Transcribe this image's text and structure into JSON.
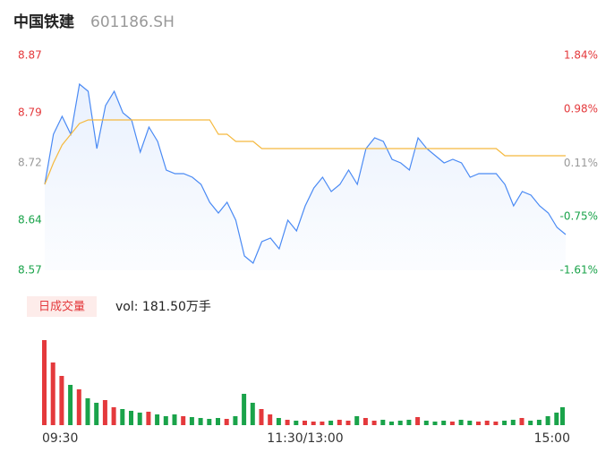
{
  "header": {
    "title": "中国铁建",
    "code": "601186.SH"
  },
  "chart_data": [
    {
      "type": "line",
      "x": [
        0,
        4,
        8,
        12,
        16,
        20,
        24,
        28,
        32,
        36,
        40,
        44,
        48,
        52,
        56,
        60,
        64,
        68,
        72,
        76,
        80,
        84,
        88,
        92,
        96,
        100,
        104,
        108,
        112,
        116,
        120,
        124,
        128,
        132,
        136,
        140,
        144,
        148,
        152,
        156,
        160,
        164,
        168,
        172,
        176,
        180,
        184,
        188,
        192,
        196,
        200,
        204,
        208,
        212,
        216,
        220,
        224,
        228,
        232,
        236,
        240
      ],
      "series": [
        {
          "name": "price",
          "color": "#4a8af4",
          "values": [
            8.69,
            8.76,
            8.785,
            8.76,
            8.83,
            8.82,
            8.74,
            8.8,
            8.82,
            8.79,
            8.78,
            8.735,
            8.77,
            8.75,
            8.71,
            8.705,
            8.705,
            8.7,
            8.69,
            8.665,
            8.65,
            8.665,
            8.64,
            8.59,
            8.58,
            8.61,
            8.615,
            8.6,
            8.64,
            8.625,
            8.66,
            8.685,
            8.7,
            8.68,
            8.69,
            8.71,
            8.69,
            8.74,
            8.755,
            8.75,
            8.725,
            8.72,
            8.71,
            8.755,
            8.74,
            8.73,
            8.72,
            8.725,
            8.72,
            8.7,
            8.705,
            8.705,
            8.705,
            8.69,
            8.66,
            8.68,
            8.675,
            8.66,
            8.65,
            8.63,
            8.62
          ]
        },
        {
          "name": "average",
          "color": "#f5b93e",
          "values": [
            8.69,
            8.72,
            8.745,
            8.76,
            8.775,
            8.78,
            8.78,
            8.78,
            8.78,
            8.78,
            8.78,
            8.78,
            8.78,
            8.78,
            8.78,
            8.78,
            8.78,
            8.78,
            8.78,
            8.78,
            8.76,
            8.76,
            8.75,
            8.75,
            8.75,
            8.74,
            8.74,
            8.74,
            8.74,
            8.74,
            8.74,
            8.74,
            8.74,
            8.74,
            8.74,
            8.74,
            8.74,
            8.74,
            8.74,
            8.74,
            8.74,
            8.74,
            8.74,
            8.74,
            8.74,
            8.74,
            8.74,
            8.74,
            8.74,
            8.74,
            8.74,
            8.74,
            8.74,
            8.73,
            8.73,
            8.73,
            8.73,
            8.73,
            8.73,
            8.73,
            8.73
          ]
        }
      ],
      "xlim": [
        0,
        240
      ],
      "ylim": [
        8.57,
        8.87
      ],
      "yticks": [
        8.87,
        8.79,
        8.72,
        8.64,
        8.57
      ],
      "ytick_colors": [
        "#e4393c",
        "#e4393c",
        "#999999",
        "#1aa34a",
        "#1aa34a"
      ],
      "y2lim": [
        -1.61,
        1.84
      ],
      "y2ticks": [
        {
          "value": 1.84,
          "label": "1.84%"
        },
        {
          "value": 0.98,
          "label": "0.98%"
        },
        {
          "value": 0.11,
          "label": "0.11%"
        },
        {
          "value": -0.75,
          "label": "-0.75%"
        },
        {
          "value": -1.61,
          "label": "-1.61%"
        }
      ]
    },
    {
      "type": "bar",
      "label": "日成交量",
      "annotation": "vol: 181.50万手",
      "up_color": "#e4393c",
      "down_color": "#1aa34a",
      "x": [
        0,
        4,
        8,
        12,
        16,
        20,
        24,
        28,
        32,
        36,
        40,
        44,
        48,
        52,
        56,
        60,
        64,
        68,
        72,
        76,
        80,
        84,
        88,
        92,
        96,
        100,
        104,
        108,
        112,
        116,
        120,
        124,
        128,
        132,
        136,
        140,
        144,
        148,
        152,
        156,
        160,
        164,
        168,
        172,
        176,
        180,
        184,
        188,
        192,
        196,
        200,
        204,
        208,
        212,
        216,
        220,
        224,
        228,
        232,
        236,
        240
      ],
      "values": [
        95,
        70,
        55,
        45,
        40,
        30,
        25,
        28,
        20,
        18,
        16,
        14,
        15,
        12,
        10,
        12,
        10,
        9,
        8,
        7,
        8,
        7,
        10,
        35,
        25,
        18,
        12,
        8,
        6,
        5,
        5,
        4,
        4,
        5,
        6,
        5,
        10,
        8,
        5,
        6,
        4,
        5,
        6,
        9,
        5,
        4,
        5,
        4,
        6,
        5,
        4,
        5,
        4,
        5,
        6,
        8,
        5,
        6,
        10,
        14,
        20
      ],
      "xlim": [
        0,
        240
      ],
      "ylim": [
        0,
        100
      ],
      "xticks": [
        {
          "value": 0,
          "label": "09:30"
        },
        {
          "value": 120,
          "label": "11:30/13:00"
        },
        {
          "value": 240,
          "label": "15:00"
        }
      ]
    }
  ]
}
